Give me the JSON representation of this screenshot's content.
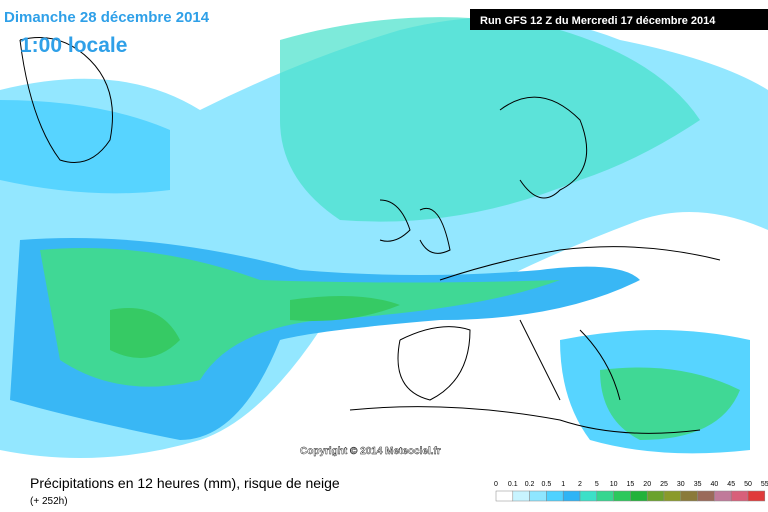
{
  "header": {
    "date": "Dimanche 28 décembre 2014",
    "time": "1:00 locale",
    "run": "Run GFS 12 Z du Mercredi 17 décembre 2014"
  },
  "copyright": "Copyright © 2014 Meteociel.fr",
  "footer": {
    "title": "Précipitations en 12 heures (mm), risque de neige",
    "lead": "(+ 252h)"
  },
  "legend": {
    "labels": [
      0,
      0.1,
      0.2,
      0.5,
      1,
      2,
      5,
      10,
      15,
      20,
      25,
      30,
      35,
      40,
      45,
      50,
      55
    ],
    "colors": [
      "#ffffff",
      "#c8f4ff",
      "#8ee6ff",
      "#4fd2ff",
      "#2fb4f5",
      "#3ce0c8",
      "#36d690",
      "#2cc85c",
      "#22b23a",
      "#6aa22c",
      "#8a9a2a",
      "#8a7a3a",
      "#9a6a5a",
      "#c07a9a",
      "#d8607a",
      "#e03a3a"
    ]
  }
}
